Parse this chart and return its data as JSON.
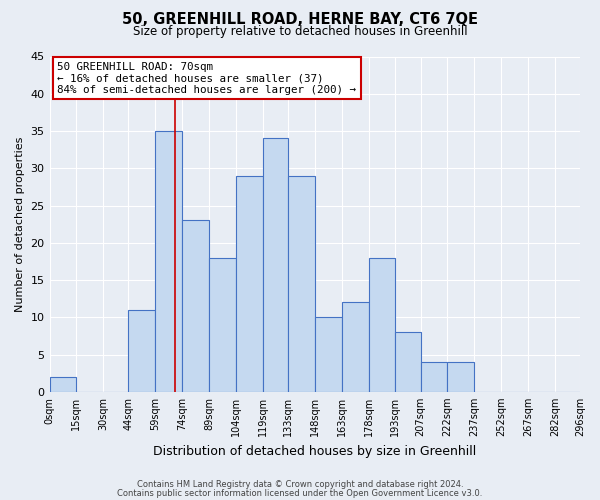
{
  "title": "50, GREENHILL ROAD, HERNE BAY, CT6 7QE",
  "subtitle": "Size of property relative to detached houses in Greenhill",
  "xlabel": "Distribution of detached houses by size in Greenhill",
  "ylabel": "Number of detached properties",
  "bin_edges": [
    0,
    15,
    30,
    44,
    59,
    74,
    89,
    104,
    119,
    133,
    148,
    163,
    178,
    193,
    207,
    222,
    237,
    252,
    267,
    282,
    296
  ],
  "bin_labels": [
    "0sqm",
    "15sqm",
    "30sqm",
    "44sqm",
    "59sqm",
    "74sqm",
    "89sqm",
    "104sqm",
    "119sqm",
    "133sqm",
    "148sqm",
    "163sqm",
    "178sqm",
    "193sqm",
    "207sqm",
    "222sqm",
    "237sqm",
    "252sqm",
    "267sqm",
    "282sqm",
    "296sqm"
  ],
  "counts": [
    2,
    0,
    0,
    11,
    35,
    23,
    18,
    29,
    34,
    29,
    10,
    12,
    18,
    8,
    4,
    4,
    0,
    0,
    0,
    0
  ],
  "bar_color": "#c5d9f0",
  "bar_edge_color": "#4472c4",
  "ylim": [
    0,
    45
  ],
  "yticks": [
    0,
    5,
    10,
    15,
    20,
    25,
    30,
    35,
    40,
    45
  ],
  "property_line_x": 70,
  "annotation_title": "50 GREENHILL ROAD: 70sqm",
  "annotation_line1": "← 16% of detached houses are smaller (37)",
  "annotation_line2": "84% of semi-detached houses are larger (200) →",
  "annotation_box_color": "#ffffff",
  "annotation_box_edge_color": "#cc0000",
  "property_line_color": "#cc0000",
  "background_color": "#e8edf4",
  "footer_line1": "Contains HM Land Registry data © Crown copyright and database right 2024.",
  "footer_line2": "Contains public sector information licensed under the Open Government Licence v3.0."
}
